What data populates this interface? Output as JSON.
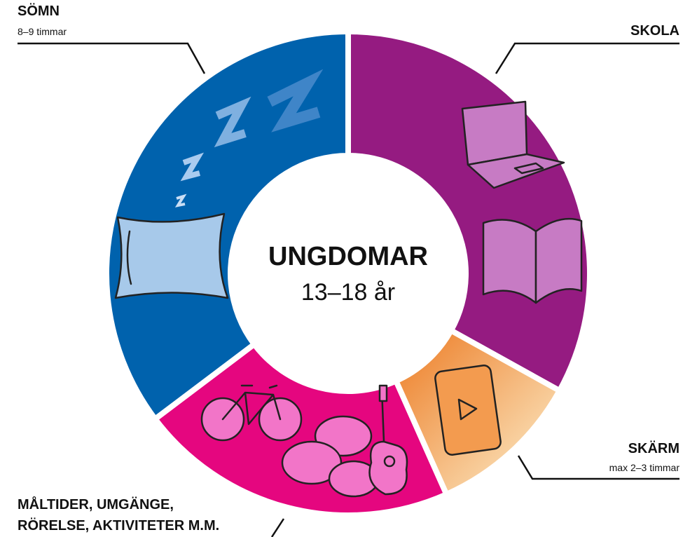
{
  "center": {
    "title": "UNGDOMAR",
    "subtitle": "13–18 år"
  },
  "segments": [
    {
      "label": "SÖMN",
      "note": "8–9 timmar"
    },
    {
      "label": "SKOLA"
    },
    {
      "label": "SKÄRM",
      "note": "max 2–3 timmar"
    },
    {
      "label_lines": [
        "MÅLTIDER, UMGÄNGE,",
        "RÖRELSE, AKTIVITETER M.M."
      ]
    }
  ]
}
